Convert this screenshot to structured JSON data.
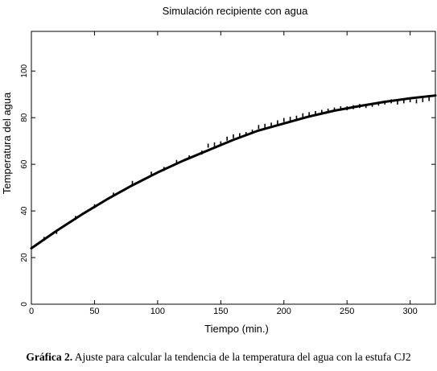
{
  "chart_data": {
    "type": "line",
    "title": "Simulación recipiente con agua",
    "xlabel": "Tiempo (min.)",
    "ylabel": "Temperatura del agua",
    "xlim": [
      0,
      320
    ],
    "ylim": [
      0,
      117
    ],
    "x_ticks": [
      "0",
      "50",
      "100",
      "150",
      "200",
      "250",
      "300"
    ],
    "y_ticks": [
      "0",
      "20",
      "40",
      "60",
      "80",
      "100"
    ],
    "grid": false,
    "series": [
      {
        "style": "fitted-curve",
        "x": [
          0,
          20,
          40,
          60,
          80,
          100,
          120,
          140,
          160,
          180,
          200,
          220,
          240,
          260,
          280,
          300,
          320
        ],
        "values": [
          24,
          31.5,
          38.5,
          45,
          51,
          56.5,
          61.5,
          66,
          70.5,
          74.5,
          77.5,
          80.5,
          83,
          85,
          86.8,
          88.3,
          89.5
        ]
      },
      {
        "style": "measured-ticks",
        "x": [
          10,
          20,
          35,
          50,
          65,
          80,
          95,
          105,
          115,
          125,
          135,
          140,
          145,
          150,
          155,
          160,
          165,
          170,
          175,
          180,
          185,
          190,
          195,
          200,
          205,
          210,
          215,
          220,
          225,
          230,
          235,
          240,
          245,
          250,
          255,
          260,
          265,
          270,
          275,
          280,
          285,
          290,
          295,
          300,
          305,
          310,
          315
        ],
        "values": [
          28,
          31,
          37,
          42,
          47,
          52,
          56,
          58,
          61,
          63,
          65,
          68,
          68.5,
          69,
          71,
          72,
          72.5,
          73,
          74,
          76,
          76.5,
          77,
          78,
          79,
          79.5,
          80,
          81,
          81.5,
          82,
          82.5,
          83,
          83.5,
          84,
          84,
          84.5,
          85,
          85,
          85.5,
          86,
          86.5,
          87,
          86.5,
          87,
          87.5,
          87,
          87.5,
          88
        ]
      }
    ]
  },
  "caption": {
    "label": "Gráfica 2.",
    "text": " Ajuste para calcular la tendencia de la temperatura del agua con la estufa CJ2"
  }
}
